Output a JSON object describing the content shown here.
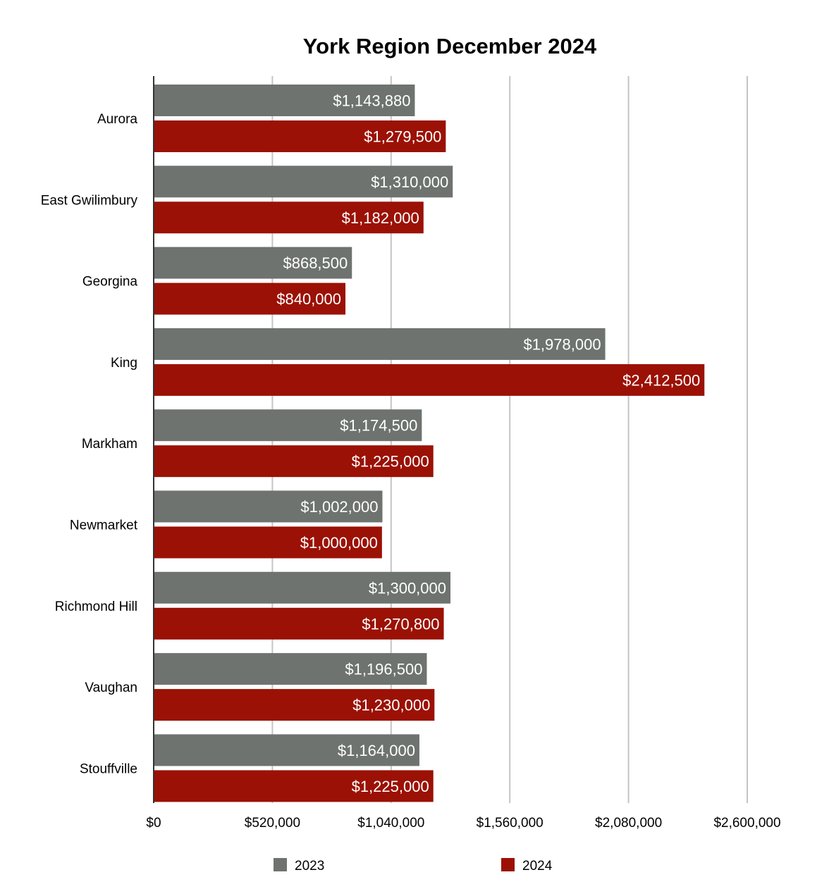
{
  "chart_data": {
    "type": "bar",
    "orientation": "horizontal",
    "title": "York Region December 2024",
    "xlabel": "",
    "ylabel": "",
    "categories": [
      "Aurora",
      "East Gwilimbury",
      "Georgina",
      "King",
      "Markham",
      "Newmarket",
      "Richmond Hill",
      "Vaughan",
      "Stouffville"
    ],
    "series": [
      {
        "name": "2023",
        "color": "#6e7370",
        "values": [
          1143880,
          1310000,
          868500,
          1978000,
          1174500,
          1002000,
          1300000,
          1196500,
          1164000
        ],
        "labels": [
          "$1,143,880",
          "$1,310,000",
          "$868,500",
          "$1,978,000",
          "$1,174,500",
          "$1,002,000",
          "$1,300,000",
          "$1,196,500",
          "$1,164,000"
        ]
      },
      {
        "name": "2024",
        "color": "#9b1105",
        "values": [
          1279500,
          1182000,
          840000,
          2412500,
          1225000,
          1000000,
          1270800,
          1230000,
          1225000
        ],
        "labels": [
          "$1,279,500",
          "$1,182,000",
          "$840,000",
          "$2,412,500",
          "$1,225,000",
          "$1,000,000",
          "$1,270,800",
          "$1,230,000",
          "$1,225,000"
        ]
      }
    ],
    "xlim": [
      0,
      2600000
    ],
    "xticks": [
      0,
      520000,
      1040000,
      1560000,
      2080000,
      2600000
    ],
    "xtick_labels": [
      "$0",
      "$520,000",
      "$1,040,000",
      "$1,560,000",
      "$2,080,000",
      "$2,600,000"
    ],
    "grid": true,
    "legend_position": "bottom"
  }
}
